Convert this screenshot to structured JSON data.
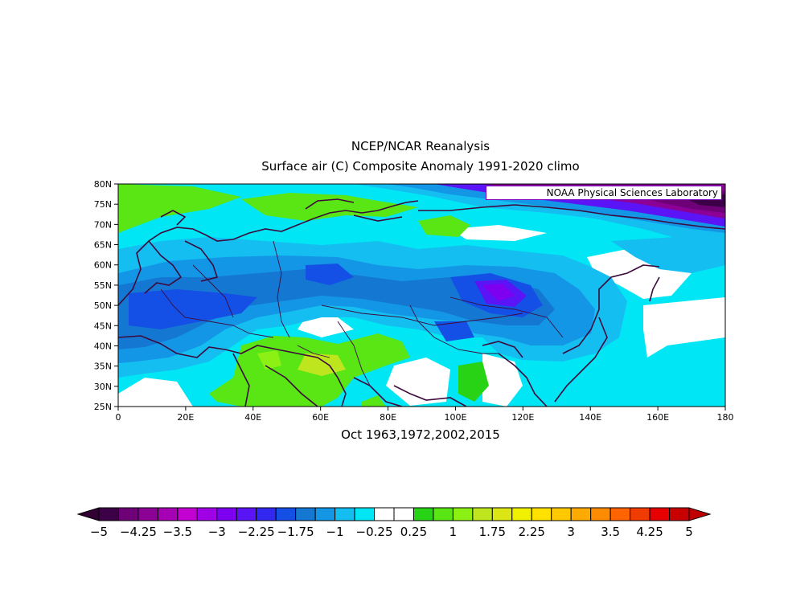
{
  "title": {
    "line1": "NCEP/NCAR Reanalysis",
    "line2": "Surface air (C) Composite Anomaly 1991-2020 climo"
  },
  "credit": "NOAA Physical Sciences Laboratory",
  "period": "Oct 1963,1972,2002,2015",
  "map": {
    "lon_range": [
      0,
      180
    ],
    "lat_range": [
      25,
      80
    ],
    "lat_ticks": [
      "80N",
      "75N",
      "70N",
      "65N",
      "60N",
      "55N",
      "50N",
      "45N",
      "40N",
      "35N",
      "30N",
      "25N"
    ],
    "lon_ticks": [
      "0",
      "20E",
      "40E",
      "60E",
      "80E",
      "100E",
      "120E",
      "140E",
      "160E",
      "180"
    ]
  },
  "colorbar": {
    "colors": [
      "#3c0046",
      "#6e0078",
      "#8c0096",
      "#a500b4",
      "#c300d2",
      "#a000e6",
      "#7d00f0",
      "#5a14f5",
      "#3228f0",
      "#1450e6",
      "#1478d2",
      "#1496e6",
      "#14bef0",
      "#00e6f5",
      "#ffffff",
      "#ffffff",
      "#28d214",
      "#5ae614",
      "#8cf014",
      "#bee61e",
      "#dce614",
      "#f0f000",
      "#ffe100",
      "#ffc800",
      "#ffaa00",
      "#ff8c00",
      "#ff6400",
      "#f03c00",
      "#e60000",
      "#c80000"
    ],
    "labels": [
      "-5",
      "-4.25",
      "-3.5",
      "-3",
      "-2.25",
      "-1.75",
      "-1",
      "-0.25",
      "0.25",
      "1",
      "1.75",
      "2.25",
      "3",
      "3.5",
      "4.25",
      "5"
    ],
    "arrow_left_color": "#320032",
    "arrow_right_color": "#c00000"
  }
}
